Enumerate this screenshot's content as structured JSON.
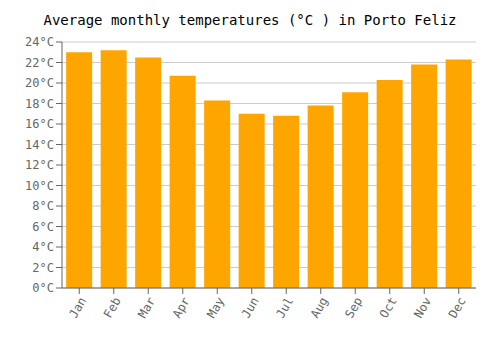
{
  "chart_data": {
    "type": "bar",
    "title": "Average monthly temperatures (°C ) in Porto Feliz",
    "categories": [
      "Jan",
      "Feb",
      "Mar",
      "Apr",
      "May",
      "Jun",
      "Jul",
      "Aug",
      "Sep",
      "Oct",
      "Nov",
      "Dec"
    ],
    "values": [
      23.0,
      23.2,
      22.5,
      20.7,
      18.3,
      17.0,
      16.8,
      17.8,
      19.1,
      20.3,
      21.8,
      22.3
    ],
    "color": "#FFA500",
    "ylim": [
      0,
      24
    ],
    "yticks": [
      {
        "value": 0,
        "label": "0°C"
      },
      {
        "value": 2,
        "label": "2°C"
      },
      {
        "value": 4,
        "label": "4°C"
      },
      {
        "value": 6,
        "label": "6°C"
      },
      {
        "value": 8,
        "label": "8°C"
      },
      {
        "value": 10,
        "label": "10°C"
      },
      {
        "value": 12,
        "label": "12°C"
      },
      {
        "value": 14,
        "label": "14°C"
      },
      {
        "value": 16,
        "label": "16°C"
      },
      {
        "value": 18,
        "label": "18°C"
      },
      {
        "value": 20,
        "label": "20°C"
      },
      {
        "value": 22,
        "label": "22°C"
      },
      {
        "value": 24,
        "label": "24°C"
      }
    ],
    "grid": true
  }
}
